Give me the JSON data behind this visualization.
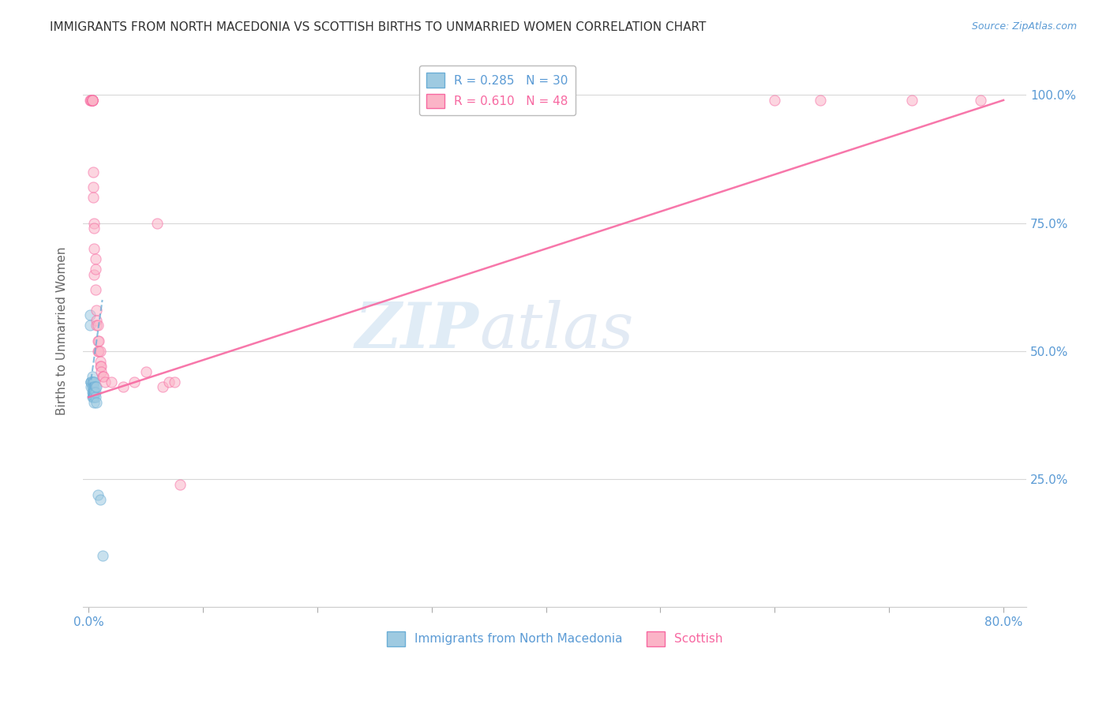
{
  "title": "IMMIGRANTS FROM NORTH MACEDONIA VS SCOTTISH BIRTHS TO UNMARRIED WOMEN CORRELATION CHART",
  "source": "Source: ZipAtlas.com",
  "ylabel": "Births to Unmarried Women",
  "x_tick_positions": [
    0.0,
    0.1,
    0.2,
    0.3,
    0.4,
    0.5,
    0.6,
    0.7,
    0.8
  ],
  "x_tick_labels": [
    "0.0%",
    "",
    "",
    "",
    "",
    "",
    "",
    "",
    "80.0%"
  ],
  "y_tick_positions": [
    0.0,
    0.25,
    0.5,
    0.75,
    1.0
  ],
  "y_tick_labels_right": [
    "",
    "25.0%",
    "50.0%",
    "75.0%",
    "100.0%"
  ],
  "watermark_zip": "ZIP",
  "watermark_atlas": "atlas",
  "blue_scatter_x": [
    0.001,
    0.001,
    0.002,
    0.002,
    0.002,
    0.002,
    0.003,
    0.003,
    0.003,
    0.003,
    0.003,
    0.004,
    0.004,
    0.004,
    0.004,
    0.004,
    0.005,
    0.005,
    0.005,
    0.005,
    0.005,
    0.005,
    0.006,
    0.006,
    0.006,
    0.007,
    0.007,
    0.008,
    0.01,
    0.012
  ],
  "blue_scatter_y": [
    0.57,
    0.55,
    0.44,
    0.44,
    0.44,
    0.43,
    0.45,
    0.44,
    0.43,
    0.42,
    0.41,
    0.44,
    0.43,
    0.42,
    0.42,
    0.41,
    0.44,
    0.43,
    0.42,
    0.42,
    0.41,
    0.4,
    0.43,
    0.42,
    0.41,
    0.43,
    0.4,
    0.22,
    0.21,
    0.1
  ],
  "pink_scatter_x": [
    0.001,
    0.002,
    0.002,
    0.003,
    0.003,
    0.003,
    0.003,
    0.003,
    0.003,
    0.004,
    0.004,
    0.004,
    0.005,
    0.005,
    0.005,
    0.005,
    0.006,
    0.006,
    0.006,
    0.007,
    0.007,
    0.007,
    0.008,
    0.008,
    0.008,
    0.009,
    0.009,
    0.01,
    0.01,
    0.01,
    0.011,
    0.011,
    0.012,
    0.013,
    0.014,
    0.02,
    0.03,
    0.04,
    0.05,
    0.06,
    0.065,
    0.07,
    0.075,
    0.08,
    0.6,
    0.64,
    0.72,
    0.78
  ],
  "pink_scatter_y": [
    0.99,
    0.99,
    0.99,
    0.99,
    0.99,
    0.99,
    0.99,
    0.99,
    0.99,
    0.85,
    0.82,
    0.8,
    0.75,
    0.74,
    0.7,
    0.65,
    0.68,
    0.66,
    0.62,
    0.58,
    0.56,
    0.55,
    0.55,
    0.52,
    0.5,
    0.52,
    0.5,
    0.5,
    0.48,
    0.47,
    0.47,
    0.46,
    0.45,
    0.45,
    0.44,
    0.44,
    0.43,
    0.44,
    0.46,
    0.75,
    0.43,
    0.44,
    0.44,
    0.24,
    0.99,
    0.99,
    0.99,
    0.99
  ],
  "blue_line_x": [
    0.0,
    0.012
  ],
  "blue_line_y": [
    0.41,
    0.6
  ],
  "pink_line_x": [
    0.0,
    0.8
  ],
  "pink_line_y": [
    0.41,
    0.99
  ],
  "background_color": "#ffffff",
  "scatter_alpha": 0.55,
  "scatter_size": 90,
  "title_fontsize": 11,
  "axis_label_color": "#5b9bd5",
  "tick_label_color": "#5b9bd5",
  "grid_color": "#d8d8d8",
  "legend_fontsize": 11,
  "blue_color": "#6baed6",
  "blue_fill": "#9ecae1",
  "pink_color": "#f768a1",
  "pink_fill": "#fbb4c7"
}
